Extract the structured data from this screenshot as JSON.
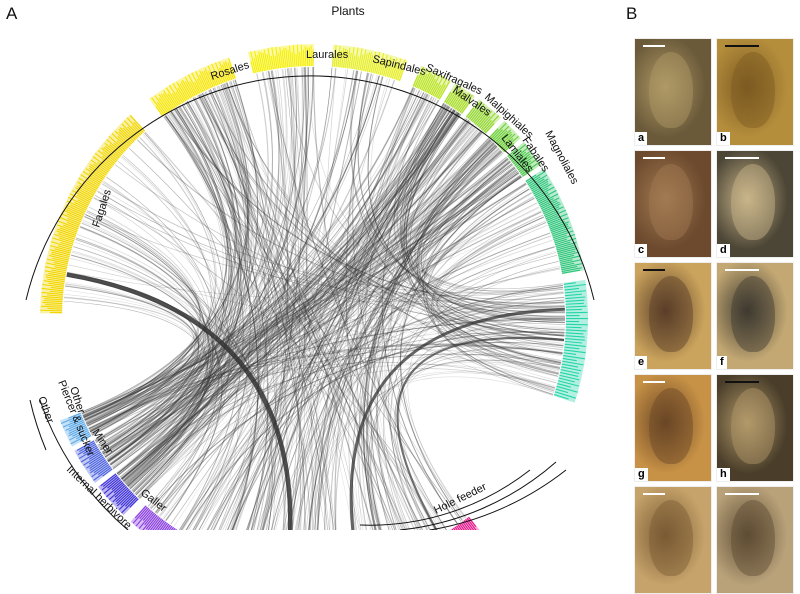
{
  "panels": {
    "a": {
      "letter": "A"
    },
    "b": {
      "letter": "B"
    }
  },
  "diagram": {
    "super_groups": [
      {
        "name": "Plants"
      }
    ],
    "plant_orders": [
      {
        "name": "Fagales",
        "color": "#f2d600"
      },
      {
        "name": "Rosales",
        "color": "#f7e500"
      },
      {
        "name": "Laurales",
        "color": "#f5ef00"
      },
      {
        "name": "Sapindales",
        "color": "#e6ee1e"
      },
      {
        "name": "Saxifragales",
        "color": "#b9e31e"
      },
      {
        "name": "Malvales",
        "color": "#a6dc22"
      },
      {
        "name": "Malpighiales",
        "color": "#8fd52a"
      },
      {
        "name": "Lamiales",
        "color": "#6ccf36"
      },
      {
        "name": "Fabales",
        "color": "#4bc94a"
      },
      {
        "name": "Magnoliales",
        "color": "#2fc57a"
      }
    ],
    "insect_groups": [
      {
        "name": "Other",
        "color": "#5aa8e8"
      },
      {
        "name": "Piercer & sucker",
        "color": "#4a62e0"
      },
      {
        "name": "Miner",
        "color": "#3b2fd8"
      },
      {
        "name": "Galler",
        "color": "#8a3fe0"
      },
      {
        "name": "Hole feeder",
        "color": "#e8168c"
      }
    ],
    "outer_groups": [
      {
        "name": "Other"
      },
      {
        "name": "Internal herbivore"
      }
    ],
    "right_block_color": "#24d5a8"
  },
  "photos": [
    {
      "label": "a",
      "bg": "#6b5a3a",
      "fg": "#b09a66"
    },
    {
      "label": "b",
      "bg": "#b58e3c",
      "fg": "#7c5a22"
    },
    {
      "label": "c",
      "bg": "#6d4a2e",
      "fg": "#a27a52"
    },
    {
      "label": "d",
      "bg": "#4c4636",
      "fg": "#c9b58a"
    },
    {
      "label": "e",
      "bg": "#caa35c",
      "fg": "#5a3e28"
    },
    {
      "label": "f",
      "bg": "#c3a873",
      "fg": "#3e3a30"
    },
    {
      "label": "g",
      "bg": "#c89246",
      "fg": "#6a4626"
    },
    {
      "label": "h",
      "bg": "#4a3e2a",
      "fg": "#b39a6a"
    },
    {
      "label": "",
      "bg": "#c6a36a",
      "fg": "#7a5a34"
    },
    {
      "label": "",
      "bg": "#b9a27a",
      "fg": "#5e4c34"
    }
  ]
}
